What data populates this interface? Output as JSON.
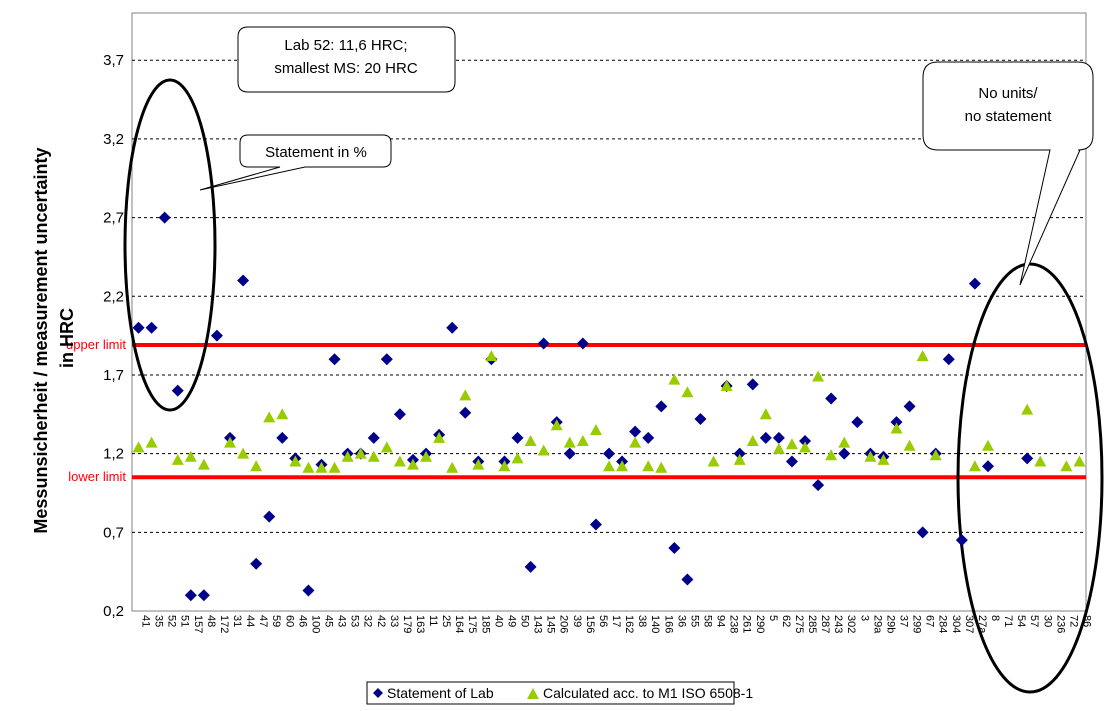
{
  "chart_data": {
    "type": "scatter",
    "ylabel": "Messunsicherheit / measurement uncertainty in HRC",
    "ylabel_lines": [
      "Messunsicherheit / measurement uncertainty",
      "in HRC"
    ],
    "ylim": [
      0.2,
      4.0
    ],
    "yticks": [
      0.2,
      0.7,
      1.2,
      1.7,
      2.2,
      2.7,
      3.2,
      3.7
    ],
    "ytick_labels": [
      "0,2",
      "0,7",
      "1,2",
      "1,7",
      "2,2",
      "2,7",
      "3,2",
      "3,7"
    ],
    "grid": "horizontal dashed",
    "categories": [
      "41",
      "35",
      "52",
      "51",
      "157",
      "48",
      "172",
      "31",
      "44",
      "47",
      "59",
      "60",
      "46",
      "100",
      "45",
      "43",
      "53",
      "32",
      "42",
      "33",
      "179",
      "163",
      "11",
      "25",
      "164",
      "175",
      "185",
      "40",
      "49",
      "50",
      "143",
      "145",
      "206",
      "39",
      "156",
      "56",
      "17",
      "162",
      "38",
      "140",
      "166",
      "36",
      "55",
      "58",
      "94",
      "238",
      "261",
      "290",
      "5",
      "62",
      "275",
      "285",
      "287",
      "243",
      "302",
      "3",
      "29a",
      "29b",
      "37",
      "299",
      "67",
      "284",
      "304",
      "307",
      "27a",
      "8",
      "71",
      "54",
      "57",
      "30",
      "236",
      "72",
      "86"
    ],
    "series": [
      {
        "name": "Statement of Lab",
        "marker": "diamond",
        "color": "#00008b",
        "values": [
          2.0,
          2.0,
          2.7,
          1.6,
          0.3,
          0.3,
          1.95,
          1.3,
          2.3,
          0.5,
          0.8,
          1.3,
          1.17,
          0.33,
          1.13,
          1.8,
          1.2,
          1.2,
          1.3,
          1.8,
          1.45,
          1.16,
          1.2,
          1.32,
          2.0,
          1.46,
          1.15,
          1.8,
          1.15,
          1.3,
          0.48,
          1.9,
          1.4,
          1.2,
          1.9,
          0.75,
          1.2,
          1.15,
          1.34,
          1.3,
          1.5,
          0.6,
          0.4,
          1.42,
          null,
          1.63,
          1.2,
          1.64,
          1.3,
          1.3,
          1.15,
          1.28,
          1.0,
          1.55,
          1.2,
          1.4,
          1.2,
          1.18,
          1.4,
          1.5,
          0.7,
          1.2,
          1.8,
          0.65,
          2.28,
          1.12,
          null,
          null,
          1.17,
          null,
          null,
          null,
          null
        ]
      },
      {
        "name": "Calculated acc. to M1 ISO 6508-1",
        "marker": "triangle",
        "color": "#99cc00",
        "values": [
          1.24,
          1.27,
          null,
          1.16,
          1.18,
          1.13,
          null,
          1.27,
          1.2,
          1.12,
          1.43,
          1.45,
          1.15,
          1.11,
          1.11,
          1.11,
          1.18,
          1.2,
          1.18,
          1.24,
          1.15,
          1.13,
          1.18,
          1.3,
          1.11,
          1.57,
          1.13,
          1.82,
          1.12,
          1.17,
          1.28,
          1.22,
          1.38,
          1.27,
          1.28,
          1.35,
          1.12,
          1.12,
          1.27,
          1.12,
          1.11,
          1.67,
          1.59,
          null,
          1.15,
          1.63,
          1.16,
          1.28,
          1.45,
          1.23,
          1.26,
          1.24,
          1.69,
          1.19,
          1.27,
          null,
          1.18,
          1.16,
          1.36,
          1.25,
          1.82,
          1.19,
          null,
          null,
          1.12,
          1.25,
          null,
          null,
          1.48,
          1.15,
          null,
          1.12,
          1.15
        ]
      }
    ],
    "reference_lines": [
      {
        "label": "upper limit",
        "value": 1.89,
        "color": "#ff0000"
      },
      {
        "label": "lower limit",
        "value": 1.05,
        "color": "#ff0000"
      }
    ],
    "annotations": [
      {
        "lines": [
          "Lab 52: 11,6 HRC;",
          "smallest MS: 20 HRC"
        ]
      },
      {
        "lines": [
          "Statement in %"
        ]
      },
      {
        "lines": [
          "No units/",
          "no statement"
        ]
      }
    ],
    "legend": "bottom-center"
  }
}
